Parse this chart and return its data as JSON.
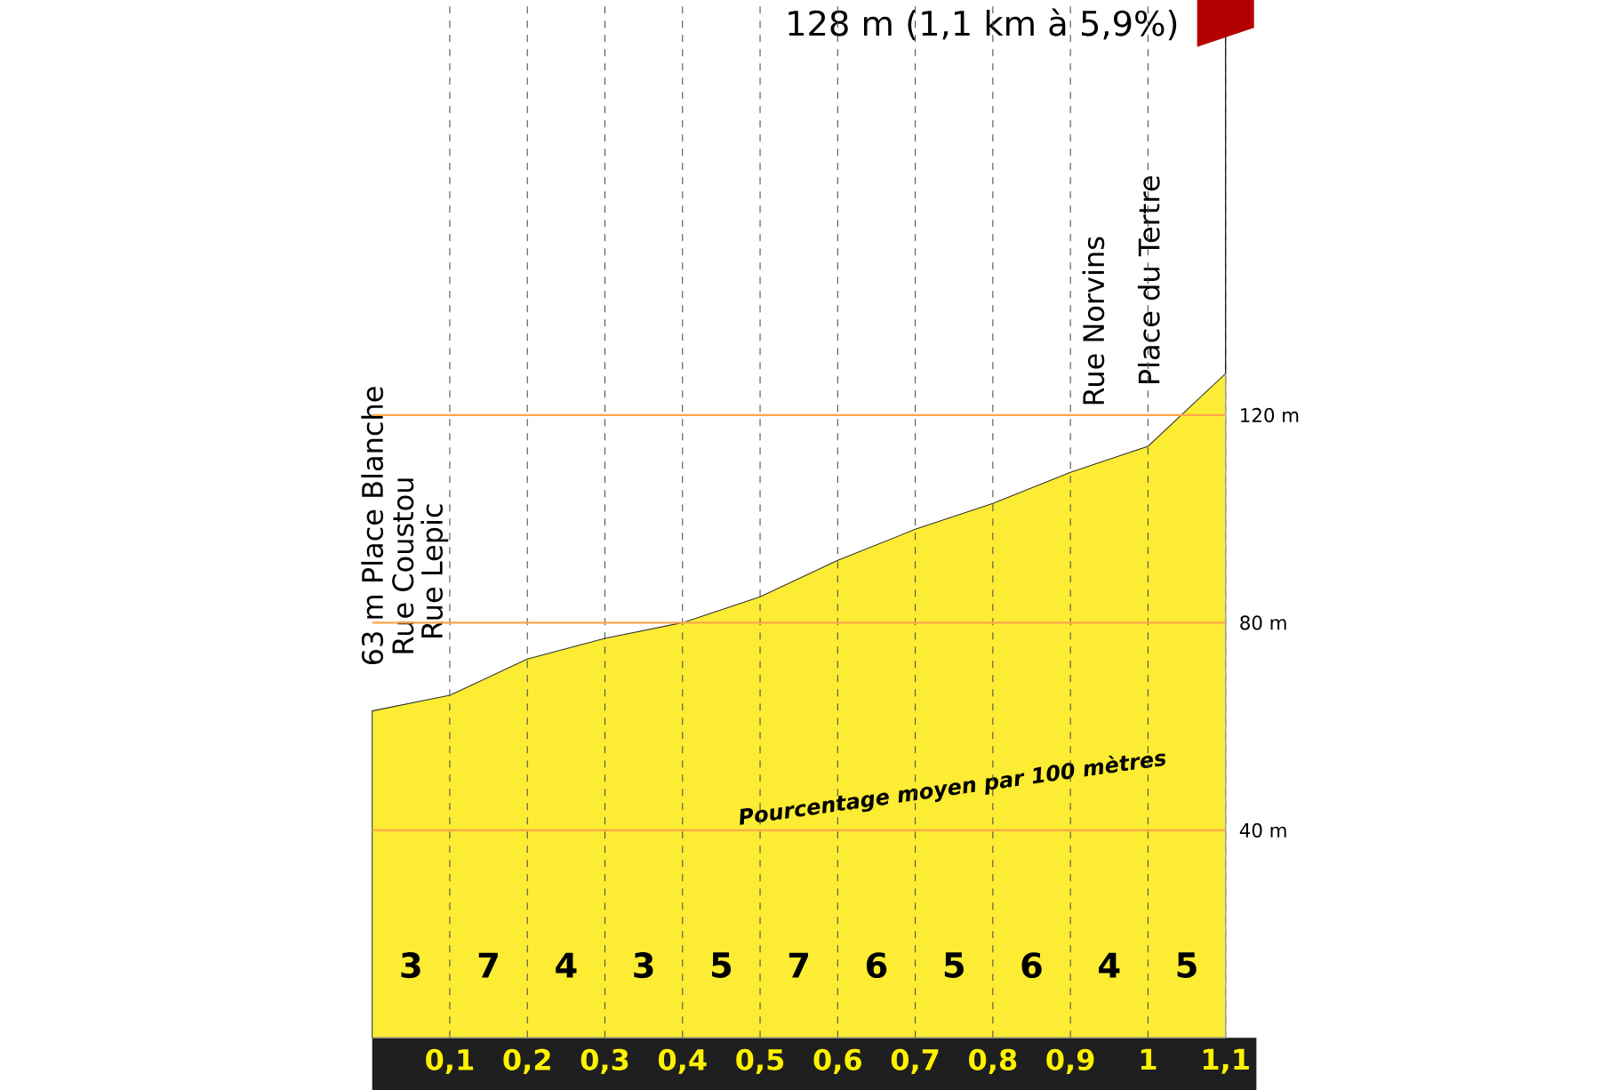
{
  "chart_data": {
    "type": "area",
    "x": [
      0,
      0.1,
      0.2,
      0.3,
      0.4,
      0.5,
      0.6,
      0.7,
      0.8,
      0.9,
      1.0,
      1.1
    ],
    "series": [
      {
        "color": "#fcec33",
        "values": [
          63,
          66,
          73,
          77,
          80,
          85,
          92,
          98,
          103,
          109,
          114,
          128
        ]
      }
    ],
    "xlim": [
      0,
      1.1
    ],
    "ylim": [
      0,
      200
    ],
    "xticks": [
      {
        "value": 0.1,
        "label": "0,1"
      },
      {
        "value": 0.2,
        "label": "0,2"
      },
      {
        "value": 0.3,
        "label": "0,3"
      },
      {
        "value": 0.4,
        "label": "0,4"
      },
      {
        "value": 0.5,
        "label": "0,5"
      },
      {
        "value": 0.6,
        "label": "0,6"
      },
      {
        "value": 0.7,
        "label": "0,7"
      },
      {
        "value": 0.8,
        "label": "0,8"
      },
      {
        "value": 0.9,
        "label": "0,9"
      },
      {
        "value": 1.0,
        "label": "1"
      },
      {
        "value": 1.1,
        "label": "1,1"
      }
    ],
    "yticks": [
      {
        "value": 40,
        "label": "40 m"
      },
      {
        "value": 80,
        "label": "80 m"
      },
      {
        "value": 120,
        "label": "120 m"
      }
    ],
    "grid": true,
    "title": "128 m (1,1 km à 5,9%)",
    "annotations": [
      "63 m Place Blanche",
      "Rue Coustou",
      "Rue Lepic",
      "Rue Norvins",
      "Place du Tertre",
      "Pourcentage moyen par 100 mètres",
      "3",
      "7",
      "4",
      "3",
      "5",
      "7",
      "6",
      "5",
      "6",
      "4",
      "5"
    ]
  }
}
